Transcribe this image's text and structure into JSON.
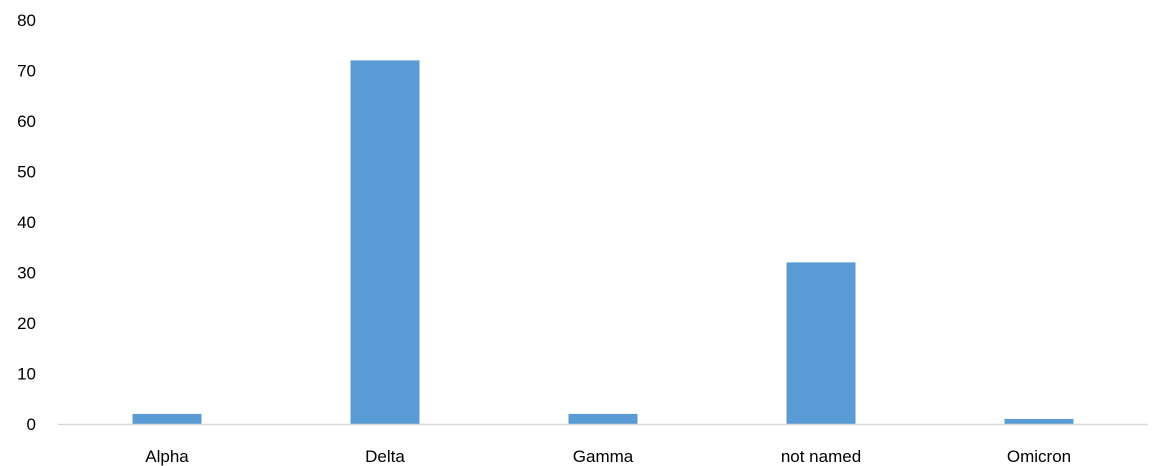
{
  "chart_data": {
    "type": "bar",
    "categories": [
      "Alpha",
      "Delta",
      "Gamma",
      "not named",
      "Omicron"
    ],
    "values": [
      2,
      72,
      2,
      32,
      1
    ],
    "title": "",
    "xlabel": "",
    "ylabel": "",
    "ylim": [
      0,
      80
    ],
    "yticks": [
      "0",
      "10",
      "20",
      "30",
      "40",
      "50",
      "60",
      "70",
      "80"
    ],
    "grid": false,
    "legend": "none",
    "bar_color": "#5b9bd5",
    "axis_color": "#d9d9d9"
  }
}
